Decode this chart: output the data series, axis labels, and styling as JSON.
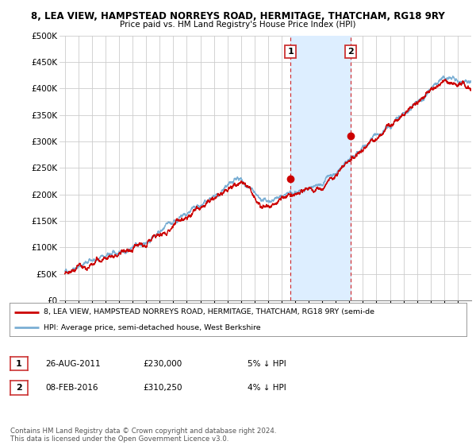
{
  "title_line1": "8, LEA VIEW, HAMPSTEAD NORREYS ROAD, HERMITAGE, THATCHAM, RG18 9RY",
  "title_line2": "Price paid vs. HM Land Registry's House Price Index (HPI)",
  "ylim": [
    0,
    500000
  ],
  "yticks": [
    0,
    50000,
    100000,
    150000,
    200000,
    250000,
    300000,
    350000,
    400000,
    450000,
    500000
  ],
  "ytick_labels": [
    "£0",
    "£50K",
    "£100K",
    "£150K",
    "£200K",
    "£250K",
    "£300K",
    "£350K",
    "£400K",
    "£450K",
    "£500K"
  ],
  "hpi_color": "#7bafd4",
  "price_color": "#cc0000",
  "marker1_x": 2011.65,
  "marker1_y": 230000,
  "marker2_x": 2016.1,
  "marker2_y": 310250,
  "vline1_x": 2011.65,
  "vline2_x": 2016.1,
  "legend_price": "8, LEA VIEW, HAMPSTEAD NORREYS ROAD, HERMITAGE, THATCHAM, RG18 9RY (semi-de",
  "legend_hpi": "HPI: Average price, semi-detached house, West Berkshire",
  "table_row1": [
    "1",
    "26-AUG-2011",
    "£230,000",
    "5% ↓ HPI"
  ],
  "table_row2": [
    "2",
    "08-FEB-2016",
    "£310,250",
    "4% ↓ HPI"
  ],
  "footnote": "Contains HM Land Registry data © Crown copyright and database right 2024.\nThis data is licensed under the Open Government Licence v3.0.",
  "bg_color": "#ffffff",
  "grid_color": "#cccccc",
  "shaded_color": "#ddeeff",
  "shaded_x1": 2011.65,
  "shaded_x2": 2016.1,
  "xlim_left": 1994.6,
  "xlim_right": 2025.0
}
